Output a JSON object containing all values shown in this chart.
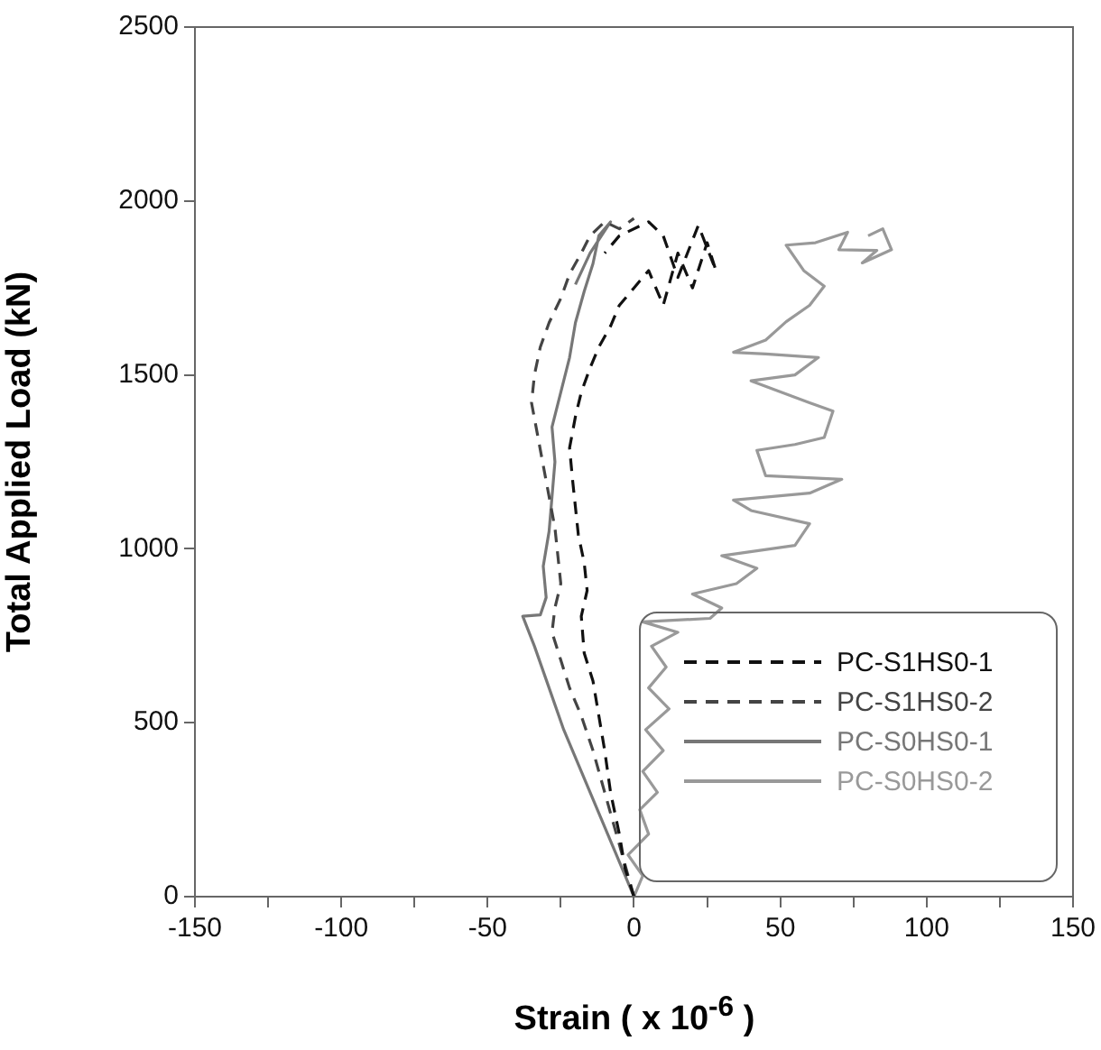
{
  "chart_data": {
    "type": "line",
    "xlabel": "Strain ( x 10$^{-6}$ )",
    "ylabel": "Total Applied Load (kN)",
    "xlim": [
      -150,
      150
    ],
    "xticks": [
      -150,
      {
        "value": -125,
        "label": null
      },
      -100,
      {
        "value": -75,
        "label": null
      },
      -50,
      {
        "value": -25,
        "label": null
      },
      0,
      {
        "value": 25,
        "label": null
      },
      50,
      {
        "value": 75,
        "label": null
      },
      100,
      {
        "value": 125,
        "label": null
      },
      150
    ],
    "ylim": [
      0,
      2500
    ],
    "yticks": [
      0,
      500,
      1000,
      1500,
      2000,
      2500
    ],
    "grid": false,
    "legend": "bottom right",
    "marker": "none",
    "series": [
      {
        "name": "PC-S1HS0-1",
        "color": "#111111",
        "line_style": "dashed",
        "x": [
          0,
          -3,
          -5,
          -8,
          -10,
          -12,
          -14,
          -17,
          -18,
          -16,
          -17,
          -19,
          -20,
          -21,
          -22,
          -20,
          -18,
          -15,
          -12,
          -8,
          -5,
          0,
          5,
          10,
          15,
          20,
          25,
          28,
          22,
          15,
          10,
          5,
          -5,
          -10
        ],
        "values": [
          0,
          80,
          180,
          300,
          420,
          520,
          620,
          700,
          806,
          880,
          960,
          1040,
          1120,
          1200,
          1290,
          1380,
          1450,
          1520,
          1580,
          1640,
          1700,
          1750,
          1800,
          1700,
          1850,
          1750,
          1880,
          1800,
          1930,
          1780,
          1900,
          1940,
          1900,
          1850
        ]
      },
      {
        "name": "PC-S1HS0-2",
        "color": "#444444",
        "line_style": "dashed",
        "x": [
          0,
          -5,
          -10,
          -14,
          -18,
          -22,
          -25,
          -28,
          -27,
          -25,
          -26,
          -27,
          -29,
          -31,
          -33,
          -35,
          -34,
          -32,
          -29,
          -25,
          -22,
          -18,
          -15,
          -10,
          -5,
          0
        ],
        "values": [
          0,
          150,
          300,
          420,
          520,
          600,
          680,
          760,
          830,
          900,
          980,
          1060,
          1150,
          1240,
          1330,
          1420,
          1500,
          1580,
          1650,
          1720,
          1790,
          1850,
          1900,
          1940,
          1920,
          1950
        ]
      },
      {
        "name": "PC-S0HS0-1",
        "color": "#777777",
        "line_style": "solid",
        "x": [
          0,
          -6,
          -12,
          -18,
          -24,
          -29,
          -34,
          -38,
          -32,
          -30,
          -31,
          -29,
          -28,
          -27,
          -28,
          -25,
          -22,
          -20,
          -17,
          -14,
          -12,
          -8,
          -15,
          -20
        ],
        "values": [
          0,
          120,
          240,
          360,
          480,
          600,
          720,
          806,
          810,
          860,
          950,
          1050,
          1150,
          1250,
          1350,
          1450,
          1550,
          1650,
          1740,
          1820,
          1900,
          1940,
          1850,
          1760
        ]
      },
      {
        "name": "PC-S0HS0-2",
        "color": "#999999",
        "line_style": "solid",
        "x": [
          0,
          3,
          -2,
          5,
          2,
          8,
          3,
          10,
          4,
          12,
          5,
          11,
          6,
          15,
          3,
          26,
          30,
          20,
          35,
          42,
          30,
          55,
          60,
          40,
          34,
          60,
          71,
          45,
          42,
          55,
          65,
          68,
          60,
          40,
          55,
          63,
          45,
          34,
          45,
          52,
          60,
          65,
          58,
          52,
          62,
          73,
          70,
          83,
          78,
          88,
          85,
          80
        ],
        "values": [
          0,
          60,
          120,
          180,
          250,
          300,
          360,
          420,
          480,
          540,
          600,
          660,
          720,
          760,
          790,
          800,
          830,
          870,
          900,
          944,
          980,
          1010,
          1072,
          1110,
          1140,
          1160,
          1200,
          1210,
          1283,
          1300,
          1320,
          1396,
          1420,
          1483,
          1500,
          1550,
          1560,
          1565,
          1600,
          1653,
          1700,
          1755,
          1800,
          1873,
          1880,
          1910,
          1860,
          1858,
          1822,
          1860,
          1920,
          1900
        ]
      }
    ]
  }
}
